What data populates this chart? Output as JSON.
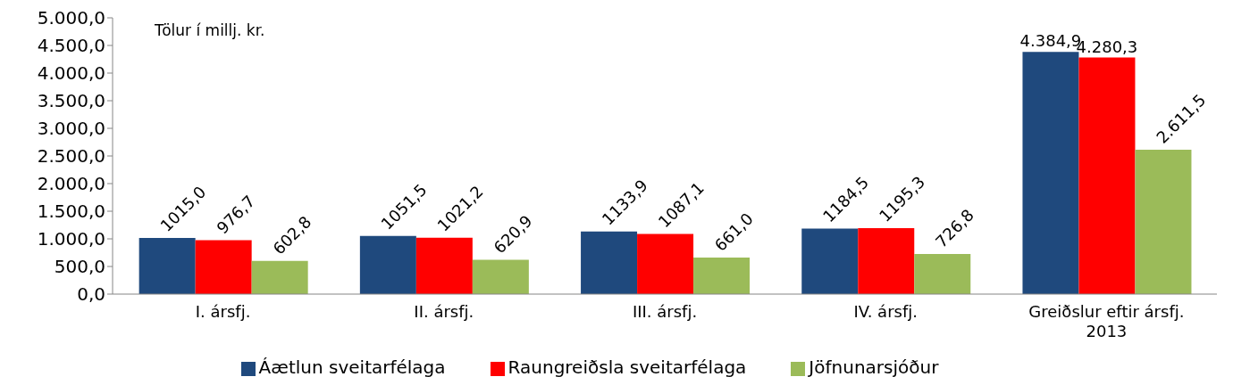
{
  "chart_data": {
    "type": "bar",
    "categories": [
      "I. ársfj.",
      "II. ársfj.",
      "III. ársfj.",
      "IV. ársfj.",
      "Greiðslur eftir ársfj. 2013"
    ],
    "series": [
      {
        "name": "Áætlun sveitarfélaga",
        "color": "#1f497d",
        "values": [
          1015.0,
          1051.5,
          1133.9,
          1184.5,
          4384.9
        ],
        "value_labels": [
          "1015,0",
          "1051,5",
          "1133,9",
          "1184,5",
          "4.384,9"
        ]
      },
      {
        "name": "Raungreiðsla sveitarfélaga",
        "color": "#ff0000",
        "values": [
          976.7,
          1021.2,
          1087.1,
          1195.3,
          4280.3
        ],
        "value_labels": [
          "976,7",
          "1021,2",
          "1087,1",
          "1195,3",
          "4.280,3"
        ]
      },
      {
        "name": "Jöfnunarsjóður",
        "color": "#9bbb59",
        "values": [
          602.8,
          620.9,
          661.0,
          726.8,
          2611.5
        ],
        "value_labels": [
          "602,8",
          "620,9",
          "661,0",
          "726,8",
          "2.611,5"
        ]
      }
    ],
    "ylim": [
      0,
      5000
    ],
    "yticks": [
      {
        "value": 0,
        "label": "0,0"
      },
      {
        "value": 500,
        "label": "500,0"
      },
      {
        "value": 1000,
        "label": "1.000,0"
      },
      {
        "value": 1500,
        "label": "1.500,0"
      },
      {
        "value": 2000,
        "label": "2.000,0"
      },
      {
        "value": 2500,
        "label": "2.500,0"
      },
      {
        "value": 3000,
        "label": "3.000,0"
      },
      {
        "value": 3500,
        "label": "3.500,0"
      },
      {
        "value": 4000,
        "label": "4.000,0"
      },
      {
        "value": 4500,
        "label": "4.500,0"
      },
      {
        "value": 5000,
        "label": "5.000,0"
      }
    ],
    "annotations": [
      "Tölur í millj. kr."
    ],
    "grid": false,
    "legend": "bottom"
  }
}
